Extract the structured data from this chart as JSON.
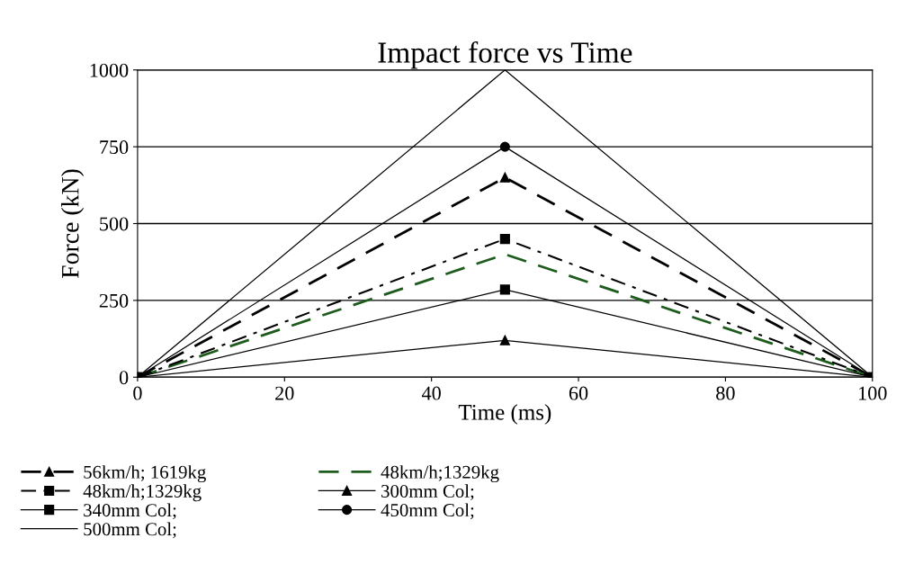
{
  "chart_data": {
    "type": "line",
    "title": "Impact force vs Time",
    "xlabel": "Time (ms)",
    "ylabel": "Force (kN)",
    "xlim": [
      0,
      100
    ],
    "xticks": [
      0,
      20,
      40,
      60,
      80,
      100
    ],
    "ylim": [
      0,
      1000
    ],
    "yticks": [
      0,
      250,
      500,
      750,
      1000
    ],
    "grid": "y",
    "legend": "bottom",
    "x": [
      0,
      50,
      100
    ],
    "series": [
      {
        "name": "56km/h; 1619kg",
        "color": "#000000",
        "values": [
          0,
          650,
          0
        ],
        "marker": "triangle",
        "line_style": "dashed"
      },
      {
        "name": "48km/h;1329kg",
        "color": "#1e5c1e",
        "values": [
          0,
          400,
          0
        ],
        "marker": "none",
        "line_style": "dashed"
      },
      {
        "name": "48km/h;1329kg",
        "color": "#000000",
        "values": [
          0,
          450,
          0
        ],
        "marker": "square",
        "line_style": "dashdot"
      },
      {
        "name": "300mm Col;",
        "color": "#000000",
        "values": [
          0,
          120,
          0
        ],
        "marker": "triangle",
        "line_style": "solid"
      },
      {
        "name": "340mm Col;",
        "color": "#000000",
        "values": [
          0,
          285,
          0
        ],
        "marker": "square",
        "line_style": "solid"
      },
      {
        "name": "450mm Col;",
        "color": "#000000",
        "values": [
          0,
          750,
          0
        ],
        "marker": "circle",
        "line_style": "solid"
      },
      {
        "name": "500mm Col;",
        "color": "#000000",
        "values": [
          0,
          1000,
          0
        ],
        "marker": "none",
        "line_style": "solid"
      }
    ]
  }
}
